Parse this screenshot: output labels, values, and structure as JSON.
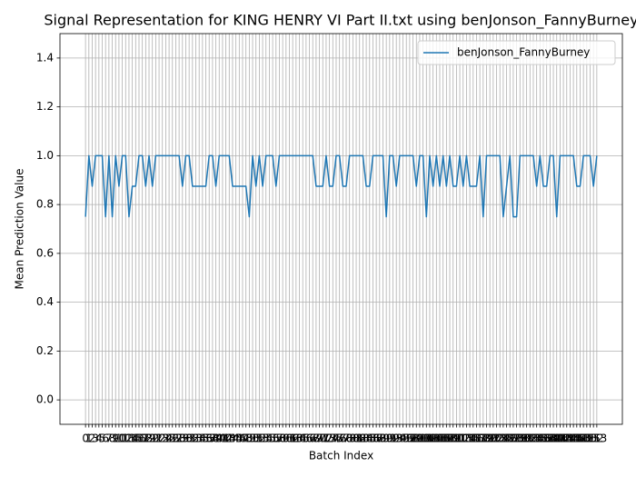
{
  "chart_data": {
    "type": "line",
    "title": "Signal Representation for KING HENRY VI Part II.txt using benJonson_FannyBurney",
    "xlabel": "Batch Index",
    "ylabel": "Mean Prediction Value",
    "x": [
      0,
      1,
      2,
      3,
      4,
      5,
      6,
      7,
      8,
      9,
      10,
      11,
      12,
      13,
      14,
      15,
      16,
      17,
      18,
      19,
      20,
      21,
      22,
      23,
      24,
      25,
      26,
      27,
      28,
      29,
      30,
      31,
      32,
      33,
      34,
      35,
      36,
      37,
      38,
      39,
      40,
      41,
      42,
      43,
      44,
      45,
      46,
      47,
      48,
      49,
      50,
      51,
      52,
      53,
      54,
      55,
      56,
      57,
      58,
      59,
      60,
      61,
      62,
      63,
      64,
      65,
      66,
      67,
      68,
      69,
      70,
      71,
      72,
      73,
      74,
      75,
      76,
      77,
      78,
      79,
      80,
      81,
      82,
      83,
      84,
      85,
      86,
      87,
      88,
      89,
      90,
      91,
      92,
      93,
      94,
      95,
      96,
      97,
      98,
      99,
      100,
      101,
      102,
      103,
      104,
      105,
      106,
      107,
      108,
      109,
      110,
      111,
      112,
      113,
      114,
      115,
      116,
      117,
      118,
      119,
      120,
      121,
      122,
      123,
      124,
      125,
      126,
      127,
      128,
      129,
      130,
      131,
      132,
      133,
      134,
      135,
      136,
      137,
      138,
      139,
      140,
      141,
      142,
      143,
      144,
      145,
      146,
      147,
      148,
      149,
      150,
      151,
      152,
      153
    ],
    "series": [
      {
        "name": "benJonson_FannyBurney",
        "color": "#1f77b4",
        "values": [
          0.75,
          1,
          0.875,
          1,
          1,
          1,
          0.75,
          1,
          0.75,
          1,
          0.875,
          1,
          1,
          0.75,
          0.875,
          0.875,
          1,
          1,
          0.875,
          1,
          0.875,
          1,
          1,
          1,
          1,
          1,
          1,
          1,
          1,
          0.875,
          1,
          1,
          0.875,
          0.875,
          0.875,
          0.875,
          0.875,
          1,
          1,
          0.875,
          1,
          1,
          1,
          1,
          0.875,
          0.875,
          0.875,
          0.875,
          0.875,
          0.75,
          1,
          0.875,
          1,
          0.875,
          1,
          1,
          1,
          0.875,
          1,
          1,
          1,
          1,
          1,
          1,
          1,
          1,
          1,
          1,
          1,
          0.875,
          0.875,
          0.875,
          1,
          0.875,
          0.875,
          1,
          1,
          0.875,
          0.875,
          1,
          1,
          1,
          1,
          1,
          0.875,
          0.875,
          1,
          1,
          1,
          1,
          0.75,
          1,
          1,
          0.875,
          1,
          1,
          1,
          1,
          1,
          0.875,
          1,
          1,
          0.75,
          1,
          0.875,
          1,
          0.875,
          1,
          0.875,
          1,
          0.875,
          0.875,
          1,
          0.875,
          1,
          0.875,
          0.875,
          0.875,
          1,
          0.75,
          1,
          1,
          1,
          1,
          1,
          0.75,
          0.875,
          1,
          0.75,
          0.75,
          1,
          1,
          1,
          1,
          1,
          0.875,
          1,
          0.875,
          0.875,
          1,
          1,
          0.75,
          1,
          1,
          1,
          1,
          1,
          0.875,
          0.875,
          1,
          1,
          1,
          0.875,
          1
        ]
      }
    ],
    "xlim": [
      -7.65,
      160.65
    ],
    "xticks": [
      0,
      1,
      2,
      3,
      4,
      5,
      6,
      7,
      8,
      9,
      10,
      11,
      12,
      13,
      14,
      15,
      16,
      17,
      18,
      19,
      20,
      21,
      22,
      23,
      24,
      25,
      26,
      27,
      28,
      29,
      30,
      31,
      32,
      33,
      34,
      35,
      36,
      37,
      38,
      39,
      40,
      41,
      42,
      43,
      44,
      45,
      46,
      47,
      48,
      49,
      50,
      51,
      52,
      53,
      54,
      55,
      56,
      57,
      58,
      59,
      60,
      61,
      62,
      63,
      64,
      65,
      66,
      67,
      68,
      69,
      70,
      71,
      72,
      73,
      74,
      75,
      76,
      77,
      78,
      79,
      80,
      81,
      82,
      83,
      84,
      85,
      86,
      87,
      88,
      89,
      90,
      91,
      92,
      93,
      94,
      95,
      96,
      97,
      98,
      99,
      100,
      101,
      102,
      103,
      104,
      105,
      106,
      107,
      108,
      109,
      110,
      111,
      112,
      113,
      114,
      115,
      116,
      117,
      118,
      119,
      120,
      121,
      122,
      123,
      124,
      125,
      126,
      127,
      128,
      129,
      130,
      131,
      132,
      133,
      134,
      135,
      136,
      137,
      138,
      139,
      140,
      141,
      142,
      143,
      144,
      145,
      146,
      147,
      148,
      149,
      150,
      151,
      152,
      153
    ],
    "ylim": [
      -0.1,
      1.5
    ],
    "yticks": [
      {
        "value": 0,
        "label": "0.0"
      },
      0.2,
      0.4,
      0.6,
      0.8,
      {
        "value": 1,
        "label": "1.0"
      },
      1.2,
      1.4
    ],
    "grid": true,
    "legend": "upper right"
  }
}
